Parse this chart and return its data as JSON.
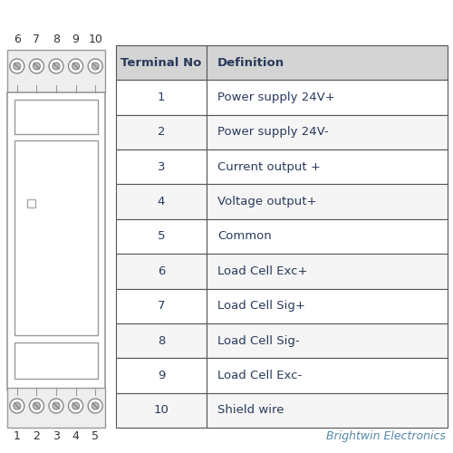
{
  "table_headers": [
    "Terminal No",
    "Definition"
  ],
  "table_rows": [
    [
      "1",
      "Power supply 24V+"
    ],
    [
      "2",
      "Power supply 24V-"
    ],
    [
      "3",
      "Current output +"
    ],
    [
      "4",
      "Voltage output+"
    ],
    [
      "5",
      "Common"
    ],
    [
      "6",
      "Load Cell Exc+"
    ],
    [
      "7",
      "Load Cell Sig+"
    ],
    [
      "8",
      "Load Cell Sig-"
    ],
    [
      "9",
      "Load Cell Exc-"
    ],
    [
      "10",
      "Shield wire"
    ]
  ],
  "top_labels": [
    "6",
    "7",
    "8",
    "9",
    "10"
  ],
  "bottom_labels": [
    "1",
    "2",
    "3",
    "4",
    "5"
  ],
  "header_bg": "#d4d4d4",
  "row_bg_odd": "#f5f5f5",
  "row_bg_even": "#ffffff",
  "table_border": "#555555",
  "text_color": "#2a3a5c",
  "brand_text": "Brightwin Electronics",
  "brand_color": "#5588aa",
  "background_color": "#ffffff",
  "device_border": "#999999",
  "screw_outer": "#888888",
  "screw_inner": "#bbbbbb"
}
